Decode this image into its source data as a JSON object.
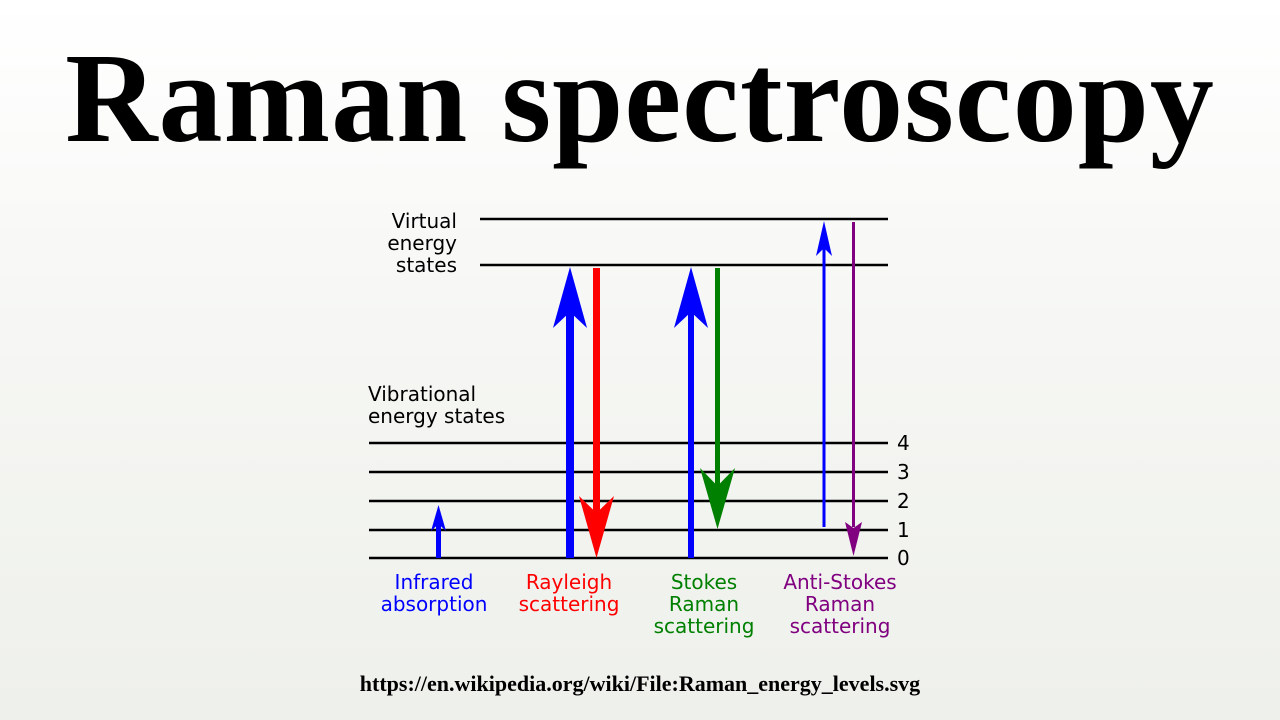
{
  "page": {
    "title": "Raman spectroscopy",
    "source_url": "https://en.wikipedia.org/wiki/File:Raman_energy_levels.svg"
  },
  "diagram": {
    "virtual_label": [
      "Virtual",
      "energy",
      "states"
    ],
    "vibrational_label": [
      "Vibrational",
      "energy states"
    ],
    "level_numbers": [
      "4",
      "3",
      "2",
      "1",
      "0"
    ],
    "processes": [
      {
        "id": "infrared",
        "lines": [
          "Infrared",
          "absorption"
        ],
        "color": "#0000ff"
      },
      {
        "id": "rayleigh",
        "lines": [
          "Rayleigh",
          "scattering"
        ],
        "color": "#ff0000"
      },
      {
        "id": "stokes",
        "lines": [
          "Stokes",
          "Raman",
          "scattering"
        ],
        "color": "#008000"
      },
      {
        "id": "anti-stokes",
        "lines": [
          "Anti-Stokes",
          "Raman",
          "scattering"
        ],
        "color": "#800080"
      }
    ],
    "colors": {
      "line": "#000000",
      "excitation": "#0000ff",
      "rayleigh": "#ff0000",
      "stokes": "#008000",
      "anti_stokes": "#800080"
    }
  }
}
